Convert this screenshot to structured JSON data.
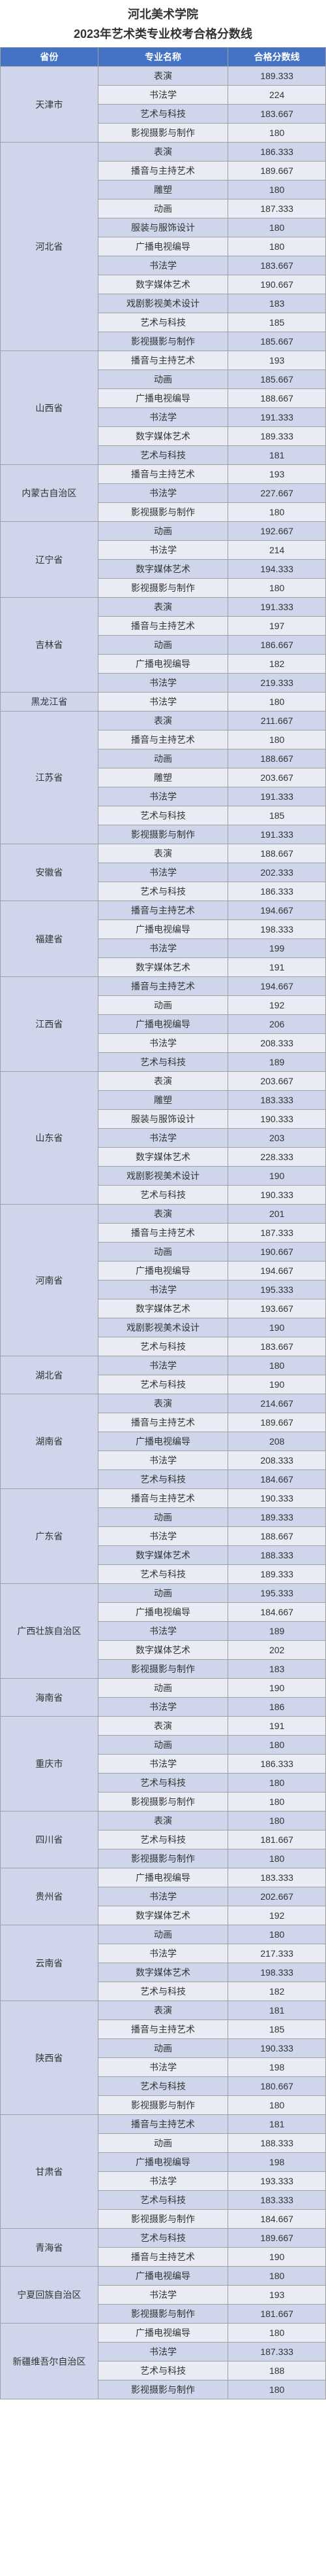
{
  "header": {
    "title": "河北美术学院",
    "subtitle": "2023年艺术类专业校考合格分数线"
  },
  "table": {
    "columns": [
      "省份",
      "专业名称",
      "合格分数线"
    ],
    "header_bg": "#4472c4",
    "header_color": "#ffffff",
    "row_bg_odd": "#cfd5ea",
    "row_bg_even": "#e9ecf5",
    "border_color": "#a0a0a0",
    "provinces": [
      {
        "name": "天津市",
        "rows": [
          [
            "表演",
            "189.333"
          ],
          [
            "书法学",
            "224"
          ],
          [
            "艺术与科技",
            "183.667"
          ],
          [
            "影视摄影与制作",
            "180"
          ]
        ]
      },
      {
        "name": "河北省",
        "rows": [
          [
            "表演",
            "186.333"
          ],
          [
            "播音与主持艺术",
            "189.667"
          ],
          [
            "雕塑",
            "180"
          ],
          [
            "动画",
            "187.333"
          ],
          [
            "服装与服饰设计",
            "180"
          ],
          [
            "广播电视编导",
            "180"
          ],
          [
            "书法学",
            "183.667"
          ],
          [
            "数字媒体艺术",
            "190.667"
          ],
          [
            "戏剧影视美术设计",
            "183"
          ],
          [
            "艺术与科技",
            "185"
          ],
          [
            "影视摄影与制作",
            "185.667"
          ]
        ]
      },
      {
        "name": "山西省",
        "rows": [
          [
            "播音与主持艺术",
            "193"
          ],
          [
            "动画",
            "185.667"
          ],
          [
            "广播电视编导",
            "188.667"
          ],
          [
            "书法学",
            "191.333"
          ],
          [
            "数字媒体艺术",
            "189.333"
          ],
          [
            "艺术与科技",
            "181"
          ]
        ]
      },
      {
        "name": "内蒙古自治区",
        "rows": [
          [
            "播音与主持艺术",
            "193"
          ],
          [
            "书法学",
            "227.667"
          ],
          [
            "影视摄影与制作",
            "180"
          ]
        ]
      },
      {
        "name": "辽宁省",
        "rows": [
          [
            "动画",
            "192.667"
          ],
          [
            "书法学",
            "214"
          ],
          [
            "数字媒体艺术",
            "194.333"
          ],
          [
            "影视摄影与制作",
            "180"
          ]
        ]
      },
      {
        "name": "吉林省",
        "rows": [
          [
            "表演",
            "191.333"
          ],
          [
            "播音与主持艺术",
            "197"
          ],
          [
            "动画",
            "186.667"
          ],
          [
            "广播电视编导",
            "182"
          ],
          [
            "书法学",
            "219.333"
          ]
        ]
      },
      {
        "name": "黑龙江省",
        "rows": [
          [
            "书法学",
            "180"
          ]
        ]
      },
      {
        "name": "江苏省",
        "rows": [
          [
            "表演",
            "211.667"
          ],
          [
            "播音与主持艺术",
            "180"
          ],
          [
            "动画",
            "188.667"
          ],
          [
            "雕塑",
            "203.667"
          ],
          [
            "书法学",
            "191.333"
          ],
          [
            "艺术与科技",
            "185"
          ],
          [
            "影视摄影与制作",
            "191.333"
          ]
        ]
      },
      {
        "name": "安徽省",
        "rows": [
          [
            "表演",
            "188.667"
          ],
          [
            "书法学",
            "202.333"
          ],
          [
            "艺术与科技",
            "186.333"
          ]
        ]
      },
      {
        "name": "福建省",
        "rows": [
          [
            "播音与主持艺术",
            "194.667"
          ],
          [
            "广播电视编导",
            "198.333"
          ],
          [
            "书法学",
            "199"
          ],
          [
            "数字媒体艺术",
            "191"
          ]
        ]
      },
      {
        "name": "江西省",
        "rows": [
          [
            "播音与主持艺术",
            "194.667"
          ],
          [
            "动画",
            "192"
          ],
          [
            "广播电视编导",
            "206"
          ],
          [
            "书法学",
            "208.333"
          ],
          [
            "艺术与科技",
            "189"
          ]
        ]
      },
      {
        "name": "山东省",
        "rows": [
          [
            "表演",
            "203.667"
          ],
          [
            "雕塑",
            "183.333"
          ],
          [
            "服装与服饰设计",
            "190.333"
          ],
          [
            "书法学",
            "203"
          ],
          [
            "数字媒体艺术",
            "228.333"
          ],
          [
            "戏剧影视美术设计",
            "190"
          ],
          [
            "艺术与科技",
            "190.333"
          ]
        ]
      },
      {
        "name": "河南省",
        "rows": [
          [
            "表演",
            "201"
          ],
          [
            "播音与主持艺术",
            "187.333"
          ],
          [
            "动画",
            "190.667"
          ],
          [
            "广播电视编导",
            "194.667"
          ],
          [
            "书法学",
            "195.333"
          ],
          [
            "数字媒体艺术",
            "193.667"
          ],
          [
            "戏剧影视美术设计",
            "190"
          ],
          [
            "艺术与科技",
            "183.667"
          ]
        ]
      },
      {
        "name": "湖北省",
        "rows": [
          [
            "书法学",
            "180"
          ],
          [
            "艺术与科技",
            "190"
          ]
        ]
      },
      {
        "name": "湖南省",
        "rows": [
          [
            "表演",
            "214.667"
          ],
          [
            "播音与主持艺术",
            "189.667"
          ],
          [
            "广播电视编导",
            "208"
          ],
          [
            "书法学",
            "208.333"
          ],
          [
            "艺术与科技",
            "184.667"
          ]
        ]
      },
      {
        "name": "广东省",
        "rows": [
          [
            "播音与主持艺术",
            "190.333"
          ],
          [
            "动画",
            "189.333"
          ],
          [
            "书法学",
            "188.667"
          ],
          [
            "数字媒体艺术",
            "188.333"
          ],
          [
            "艺术与科技",
            "189.333"
          ]
        ]
      },
      {
        "name": "广西壮族自治区",
        "rows": [
          [
            "动画",
            "195.333"
          ],
          [
            "广播电视编导",
            "184.667"
          ],
          [
            "书法学",
            "189"
          ],
          [
            "数字媒体艺术",
            "202"
          ],
          [
            "影视摄影与制作",
            "183"
          ]
        ]
      },
      {
        "name": "海南省",
        "rows": [
          [
            "动画",
            "190"
          ],
          [
            "书法学",
            "186"
          ]
        ]
      },
      {
        "name": "重庆市",
        "rows": [
          [
            "表演",
            "191"
          ],
          [
            "动画",
            "180"
          ],
          [
            "书法学",
            "186.333"
          ],
          [
            "艺术与科技",
            "180"
          ],
          [
            "影视摄影与制作",
            "180"
          ]
        ]
      },
      {
        "name": "四川省",
        "rows": [
          [
            "表演",
            "180"
          ],
          [
            "艺术与科技",
            "181.667"
          ],
          [
            "影视摄影与制作",
            "180"
          ]
        ]
      },
      {
        "name": "贵州省",
        "rows": [
          [
            "广播电视编导",
            "183.333"
          ],
          [
            "书法学",
            "202.667"
          ],
          [
            "数字媒体艺术",
            "192"
          ]
        ]
      },
      {
        "name": "云南省",
        "rows": [
          [
            "动画",
            "180"
          ],
          [
            "书法学",
            "217.333"
          ],
          [
            "数字媒体艺术",
            "198.333"
          ],
          [
            "艺术与科技",
            "182"
          ]
        ]
      },
      {
        "name": "陕西省",
        "rows": [
          [
            "表演",
            "181"
          ],
          [
            "播音与主持艺术",
            "185"
          ],
          [
            "动画",
            "190.333"
          ],
          [
            "书法学",
            "198"
          ],
          [
            "艺术与科技",
            "180.667"
          ],
          [
            "影视摄影与制作",
            "180"
          ]
        ]
      },
      {
        "name": "甘肃省",
        "rows": [
          [
            "播音与主持艺术",
            "181"
          ],
          [
            "动画",
            "188.333"
          ],
          [
            "广播电视编导",
            "198"
          ],
          [
            "书法学",
            "193.333"
          ],
          [
            "艺术与科技",
            "183.333"
          ],
          [
            "影视摄影与制作",
            "184.667"
          ]
        ]
      },
      {
        "name": "青海省",
        "rows": [
          [
            "艺术与科技",
            "189.667"
          ],
          [
            "播音与主持艺术",
            "190"
          ]
        ]
      },
      {
        "name": "宁夏回族自治区",
        "rows": [
          [
            "广播电视编导",
            "180"
          ],
          [
            "书法学",
            "193"
          ],
          [
            "影视摄影与制作",
            "181.667"
          ]
        ]
      },
      {
        "name": "新疆维吾尔自治区",
        "rows": [
          [
            "广播电视编导",
            "180"
          ],
          [
            "书法学",
            "187.333"
          ],
          [
            "艺术与科技",
            "188"
          ],
          [
            "影视摄影与制作",
            "180"
          ]
        ]
      }
    ]
  }
}
